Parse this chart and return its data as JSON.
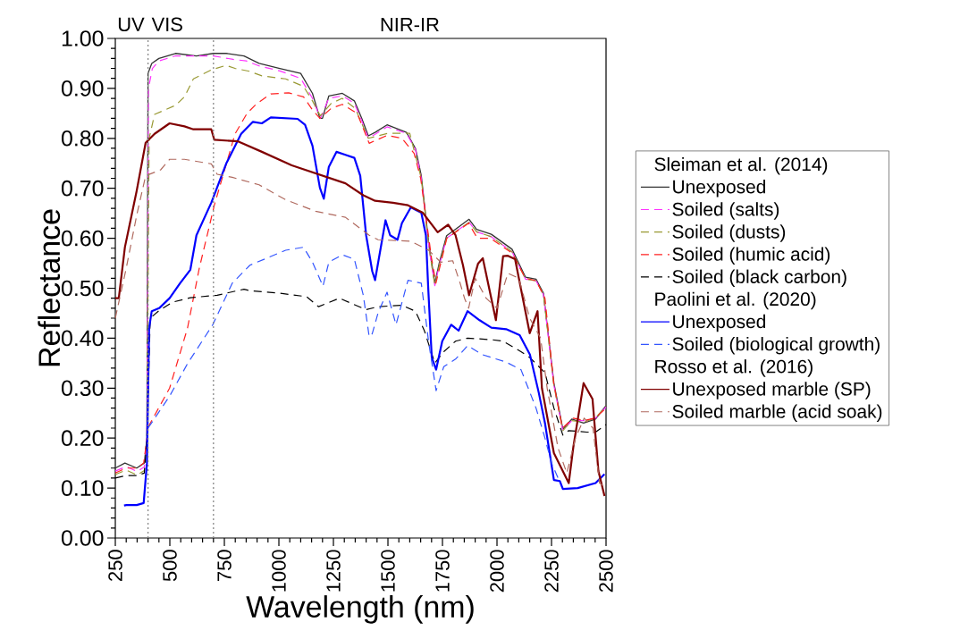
{
  "chart_data": {
    "type": "line",
    "xlabel": "Wavelength (nm)",
    "ylabel": "Reflectance",
    "xlim": [
      250,
      2500
    ],
    "xticks": [
      250,
      500,
      750,
      1000,
      1250,
      1500,
      1750,
      2000,
      2250,
      2500
    ],
    "ylim": [
      0,
      1
    ],
    "yticks": [
      {
        "value": 0,
        "label": "0.00"
      },
      {
        "value": 0.1,
        "label": "0.10"
      },
      {
        "value": 0.2,
        "label": "0.20"
      },
      {
        "value": 0.3,
        "label": "0.30"
      },
      {
        "value": 0.4,
        "label": "0.40"
      },
      {
        "value": 0.5,
        "label": "0.50"
      },
      {
        "value": 0.6,
        "label": "0.60"
      },
      {
        "value": 0.7,
        "label": "0.70"
      },
      {
        "value": 0.8,
        "label": "0.80"
      },
      {
        "value": 0.9,
        "label": "0.90"
      },
      {
        "value": 1,
        "label": "1.00"
      }
    ],
    "grid": false,
    "legend": "right",
    "marker": "none",
    "annotations": [
      "UV",
      "VIS",
      "NIR-IR",
      "Sleiman et al. (2014)",
      "Paolini et al. (2020)",
      "Rosso et al. (2016)"
    ],
    "ref_lines": [
      {
        "axis": "x",
        "value": 400,
        "color": "#888888",
        "line_style": "dotted"
      },
      {
        "axis": "x",
        "value": 700,
        "color": "#888888",
        "line_style": "dotted"
      }
    ],
    "series": [
      {
        "name": "Unexposed",
        "color": "#333333",
        "line_style": "solid",
        "x": [
          250,
          294,
          348,
          383,
          395,
          400,
          417,
          450,
          526,
          622,
          700,
          758,
          840,
          909,
          1004,
          1100,
          1154,
          1188,
          1200,
          1229,
          1291,
          1346,
          1380,
          1410,
          1441,
          1496,
          1585,
          1626,
          1653,
          1687,
          1715,
          1735,
          1769,
          1810,
          1872,
          1906,
          1974,
          2069,
          2131,
          2179,
          2213,
          2261,
          2302,
          2343,
          2397,
          2452,
          2500
        ],
        "values": [
          0.14,
          0.15,
          0.14,
          0.15,
          0.2,
          0.93,
          0.95,
          0.96,
          0.97,
          0.965,
          0.97,
          0.97,
          0.965,
          0.95,
          0.94,
          0.93,
          0.89,
          0.84,
          0.84,
          0.885,
          0.89,
          0.875,
          0.84,
          0.805,
          0.812,
          0.827,
          0.812,
          0.78,
          0.725,
          0.59,
          0.51,
          0.55,
          0.605,
          0.618,
          0.638,
          0.618,
          0.608,
          0.578,
          0.522,
          0.518,
          0.49,
          0.31,
          0.218,
          0.238,
          0.23,
          0.238,
          0.265
        ]
      },
      {
        "name": "Soiled (salts)",
        "color": "#ff33ff",
        "line_style": "dashed",
        "x": [
          250,
          300,
          350,
          383,
          395,
          402,
          420,
          450,
          526,
          622,
          700,
          790,
          850,
          909,
          1004,
          1100,
          1154,
          1190,
          1229,
          1291,
          1346,
          1380,
          1410,
          1441,
          1496,
          1585,
          1626,
          1653,
          1687,
          1715,
          1735,
          1769,
          1810,
          1872,
          1906,
          1974,
          2069,
          2131,
          2179,
          2213,
          2261,
          2302,
          2343,
          2397,
          2452,
          2500
        ],
        "values": [
          0.134,
          0.143,
          0.133,
          0.142,
          0.2,
          0.9,
          0.94,
          0.955,
          0.965,
          0.965,
          0.965,
          0.958,
          0.955,
          0.945,
          0.935,
          0.92,
          0.88,
          0.84,
          0.88,
          0.885,
          0.87,
          0.835,
          0.8,
          0.808,
          0.823,
          0.81,
          0.778,
          0.72,
          0.585,
          0.505,
          0.545,
          0.6,
          0.613,
          0.632,
          0.613,
          0.603,
          0.573,
          0.518,
          0.515,
          0.487,
          0.305,
          0.215,
          0.235,
          0.235,
          0.24,
          0.262
        ]
      },
      {
        "name": "Soiled (dusts)",
        "color": "#999933",
        "line_style": "dashed",
        "x": [
          250,
          300,
          350,
          383,
          395,
          405,
          430,
          526,
          567,
          608,
          690,
          758,
          799,
          867,
          922,
          1031,
          1113,
          1154,
          1190,
          1240,
          1290,
          1350,
          1410,
          1500,
          1600,
          1653,
          1687,
          1715,
          1735,
          1769,
          1810,
          1872,
          1906,
          1974,
          2069,
          2131,
          2179,
          2213,
          2261,
          2302,
          2343,
          2397,
          2452,
          2500
        ],
        "values": [
          0.127,
          0.136,
          0.126,
          0.135,
          0.2,
          0.8,
          0.848,
          0.866,
          0.883,
          0.919,
          0.937,
          0.946,
          0.94,
          0.934,
          0.925,
          0.919,
          0.904,
          0.875,
          0.845,
          0.87,
          0.88,
          0.86,
          0.8,
          0.81,
          0.81,
          0.72,
          0.585,
          0.505,
          0.545,
          0.6,
          0.613,
          0.632,
          0.613,
          0.603,
          0.573,
          0.518,
          0.515,
          0.487,
          0.305,
          0.215,
          0.235,
          0.232,
          0.24,
          0.265
        ]
      },
      {
        "name": "Soiled (humic acid)",
        "color": "#ff2020",
        "line_style": "dashed",
        "x": [
          250,
          300,
          350,
          380,
          403,
          499,
          581,
          635,
          704,
          799,
          854,
          895,
          963,
          1045,
          1113,
          1154,
          1188,
          1240,
          1291,
          1359,
          1414,
          1496,
          1564,
          1620,
          1650,
          1700,
          1720,
          1770,
          1870,
          1910,
          1970,
          2070,
          2130,
          2180,
          2220,
          2260,
          2300,
          2350,
          2400,
          2450,
          2500
        ],
        "values": [
          0.13,
          0.14,
          0.14,
          0.15,
          0.224,
          0.3,
          0.42,
          0.54,
          0.666,
          0.809,
          0.85,
          0.868,
          0.889,
          0.891,
          0.883,
          0.857,
          0.84,
          0.86,
          0.868,
          0.85,
          0.79,
          0.806,
          0.8,
          0.77,
          0.72,
          0.56,
          0.51,
          0.6,
          0.63,
          0.6,
          0.6,
          0.57,
          0.52,
          0.515,
          0.48,
          0.31,
          0.22,
          0.24,
          0.235,
          0.24,
          0.26
        ]
      },
      {
        "name": "Soiled (black carbon)",
        "color": "#000000",
        "line_style": "dashed",
        "x": [
          250,
          300,
          350,
          383,
          395,
          410,
          450,
          512,
          594,
          717,
          840,
          867,
          1004,
          1127,
          1182,
          1277,
          1400,
          1455,
          1564,
          1626,
          1667,
          1715,
          1756,
          1810,
          1865,
          1974,
          2028,
          2110,
          2151,
          2220,
          2261,
          2302,
          2329,
          2411,
          2452,
          2500
        ],
        "values": [
          0.12,
          0.125,
          0.125,
          0.13,
          0.2,
          0.44,
          0.455,
          0.472,
          0.481,
          0.486,
          0.498,
          0.495,
          0.49,
          0.483,
          0.463,
          0.48,
          0.457,
          0.463,
          0.466,
          0.454,
          0.415,
          0.35,
          0.373,
          0.394,
          0.4,
          0.397,
          0.394,
          0.373,
          0.361,
          0.331,
          0.26,
          0.206,
          0.215,
          0.212,
          0.212,
          0.227
        ]
      },
      {
        "name": "Unexposed",
        "color": "#0000ff",
        "line_style": "solid",
        "x": [
          290,
          301,
          348,
          380,
          395,
          405,
          417,
          451,
          499,
          547,
          594,
          622,
          690,
          758,
          827,
          881,
          922,
          963,
          1086,
          1120,
          1154,
          1188,
          1206,
          1229,
          1264,
          1305,
          1346,
          1373,
          1400,
          1428,
          1441,
          1489,
          1510,
          1544,
          1564,
          1605,
          1653,
          1674,
          1685,
          1701,
          1721,
          1749,
          1790,
          1824,
          1865,
          1920,
          1974,
          2042,
          2104,
          2151,
          2192,
          2220,
          2261,
          2288,
          2302,
          2370,
          2452,
          2493
        ],
        "values": [
          0.065,
          0.066,
          0.066,
          0.07,
          0.15,
          0.42,
          0.454,
          0.46,
          0.48,
          0.51,
          0.537,
          0.606,
          0.671,
          0.749,
          0.809,
          0.833,
          0.83,
          0.842,
          0.839,
          0.827,
          0.785,
          0.701,
          0.679,
          0.743,
          0.773,
          0.767,
          0.761,
          0.725,
          0.606,
          0.534,
          0.516,
          0.636,
          0.606,
          0.597,
          0.63,
          0.662,
          0.651,
          0.606,
          0.498,
          0.361,
          0.337,
          0.394,
          0.427,
          0.415,
          0.454,
          0.436,
          0.421,
          0.418,
          0.406,
          0.367,
          0.29,
          0.23,
          0.116,
          0.114,
          0.098,
          0.1,
          0.11,
          0.128
        ]
      },
      {
        "name": "Soiled (biological growth)",
        "color": "#3355ff",
        "line_style": "dashed",
        "x": [
          400,
          499,
          581,
          697,
          786,
          867,
          949,
          1031,
          1113,
          1154,
          1202,
          1229,
          1291,
          1346,
          1387,
          1414,
          1428,
          1455,
          1496,
          1537,
          1592,
          1653,
          1687,
          1721,
          1756,
          1810,
          1865,
          1933,
          2042,
          2110,
          2179,
          2220,
          2250,
          2280
        ],
        "values": [
          0.22,
          0.284,
          0.349,
          0.427,
          0.51,
          0.546,
          0.561,
          0.576,
          0.582,
          0.552,
          0.504,
          0.552,
          0.567,
          0.558,
          0.486,
          0.403,
          0.409,
          0.451,
          0.492,
          0.427,
          0.516,
          0.51,
          0.391,
          0.295,
          0.343,
          0.358,
          0.385,
          0.367,
          0.352,
          0.337,
          0.26,
          0.2,
          0.15,
          0.12
        ]
      },
      {
        "name": "Unexposed marble (SP)",
        "color": "#800000",
        "line_style": "solid",
        "x": [
          250,
          266,
          294,
          348,
          389,
          430,
          499,
          567,
          608,
          690,
          704,
          813,
          922,
          1059,
          1182,
          1305,
          1387,
          1441,
          1523,
          1592,
          1660,
          1728,
          1776,
          1810,
          1844,
          1872,
          1913,
          1935,
          1995,
          2028,
          2050,
          2083,
          2150,
          2186,
          2206,
          2261,
          2329,
          2350,
          2397,
          2438,
          2465,
          2493
        ],
        "values": [
          0.48,
          0.48,
          0.582,
          0.695,
          0.791,
          0.809,
          0.83,
          0.824,
          0.818,
          0.818,
          0.797,
          0.794,
          0.773,
          0.746,
          0.728,
          0.71,
          0.686,
          0.675,
          0.671,
          0.666,
          0.651,
          0.612,
          0.627,
          0.606,
          0.546,
          0.486,
          0.549,
          0.56,
          0.436,
          0.564,
          0.565,
          0.558,
          0.41,
          0.454,
          0.3,
          0.17,
          0.11,
          0.182,
          0.31,
          0.278,
          0.134,
          0.084
        ]
      },
      {
        "name": "Soiled  marble (acid soak)",
        "color": "#b06a5f",
        "line_style": "dashed",
        "x": [
          250,
          300,
          350,
          389,
          458,
          499,
          567,
          690,
          717,
          786,
          909,
          1031,
          1168,
          1305,
          1414,
          1455,
          1605,
          1687,
          1742,
          1797,
          1831,
          1851,
          1870,
          1900,
          1950,
          2000,
          2050,
          2100,
          2150,
          2200,
          2230,
          2280,
          2320,
          2360,
          2400,
          2440,
          2470,
          2500
        ],
        "values": [
          0.44,
          0.54,
          0.65,
          0.725,
          0.737,
          0.758,
          0.758,
          0.749,
          0.728,
          0.722,
          0.707,
          0.677,
          0.654,
          0.642,
          0.606,
          0.597,
          0.594,
          0.576,
          0.552,
          0.555,
          0.51,
          0.48,
          0.46,
          0.52,
          0.48,
          0.46,
          0.53,
          0.52,
          0.44,
          0.4,
          0.3,
          0.18,
          0.13,
          0.2,
          0.24,
          0.22,
          0.11,
          0.1
        ]
      }
    ]
  }
}
